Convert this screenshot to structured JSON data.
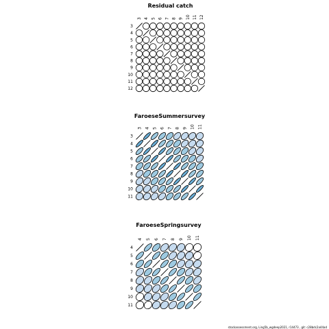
{
  "footer_text": "stockassessment.org, Ling5b_wgdeep2021, r14473 , git: c28bdc2a44ad",
  "colors": {
    "stroke": "#000000",
    "fill_low": "#c6dbef",
    "fill_mid": "#6baed6",
    "fill_high": "#2171b5"
  },
  "chart_data": [
    {
      "type": "heatmap",
      "title": "Residual catch",
      "ages": [
        "3",
        "4",
        "5",
        "6",
        "7",
        "8",
        "9",
        "10",
        "11",
        "12"
      ],
      "correlation": [
        [
          1.0,
          0.0,
          0.0,
          0.0,
          0.0,
          0.0,
          0.0,
          0.0,
          0.0,
          0.0
        ],
        [
          0.0,
          1.0,
          0.0,
          0.0,
          0.0,
          0.0,
          0.0,
          0.0,
          0.0,
          0.0
        ],
        [
          0.0,
          0.0,
          1.0,
          0.0,
          0.0,
          0.0,
          0.0,
          0.0,
          0.0,
          0.0
        ],
        [
          0.0,
          0.0,
          0.0,
          1.0,
          0.0,
          0.0,
          0.0,
          0.0,
          0.0,
          0.0
        ],
        [
          0.0,
          0.0,
          0.0,
          0.0,
          1.0,
          0.0,
          0.0,
          0.0,
          0.0,
          0.0
        ],
        [
          0.0,
          0.0,
          0.0,
          0.0,
          0.0,
          1.0,
          0.0,
          0.0,
          0.0,
          0.0
        ],
        [
          0.0,
          0.0,
          0.0,
          0.0,
          0.0,
          0.0,
          1.0,
          0.0,
          0.0,
          0.0
        ],
        [
          0.0,
          0.0,
          0.0,
          0.0,
          0.0,
          0.0,
          0.0,
          1.0,
          0.0,
          0.0
        ],
        [
          0.0,
          0.0,
          0.0,
          0.0,
          0.0,
          0.0,
          0.0,
          0.0,
          1.0,
          0.0
        ],
        [
          0.0,
          0.0,
          0.0,
          0.0,
          0.0,
          0.0,
          0.0,
          0.0,
          0.0,
          1.0
        ]
      ]
    },
    {
      "type": "heatmap",
      "title": "FaroeseSummersurvey",
      "ages": [
        "3",
        "4",
        "5",
        "6",
        "7",
        "8",
        "9",
        "10",
        "11"
      ],
      "correlation": [
        [
          1.0,
          0.85,
          0.72,
          0.6,
          0.49,
          0.4,
          0.32,
          0.24,
          0.16
        ],
        [
          0.85,
          1.0,
          0.85,
          0.72,
          0.6,
          0.49,
          0.4,
          0.32,
          0.24
        ],
        [
          0.72,
          0.85,
          1.0,
          0.85,
          0.72,
          0.6,
          0.49,
          0.4,
          0.32
        ],
        [
          0.6,
          0.72,
          0.85,
          1.0,
          0.85,
          0.72,
          0.6,
          0.49,
          0.4
        ],
        [
          0.49,
          0.6,
          0.72,
          0.85,
          1.0,
          0.85,
          0.72,
          0.6,
          0.49
        ],
        [
          0.4,
          0.49,
          0.6,
          0.72,
          0.85,
          1.0,
          0.85,
          0.72,
          0.6
        ],
        [
          0.32,
          0.4,
          0.49,
          0.6,
          0.72,
          0.85,
          1.0,
          0.85,
          0.72
        ],
        [
          0.24,
          0.32,
          0.4,
          0.49,
          0.6,
          0.72,
          0.85,
          1.0,
          0.85
        ],
        [
          0.16,
          0.24,
          0.32,
          0.4,
          0.49,
          0.6,
          0.72,
          0.85,
          1.0
        ]
      ]
    },
    {
      "type": "heatmap",
      "title": "FaroeseSpringsurvey",
      "ages": [
        "4",
        "5",
        "6",
        "7",
        "8",
        "9",
        "10",
        "11"
      ],
      "correlation": [
        [
          1.0,
          0.72,
          0.52,
          0.37,
          0.27,
          0.19,
          0.14,
          0.1
        ],
        [
          0.72,
          1.0,
          0.72,
          0.52,
          0.37,
          0.27,
          0.19,
          0.14
        ],
        [
          0.52,
          0.72,
          1.0,
          0.72,
          0.52,
          0.37,
          0.27,
          0.19
        ],
        [
          0.37,
          0.52,
          0.72,
          1.0,
          0.72,
          0.52,
          0.37,
          0.27
        ],
        [
          0.27,
          0.37,
          0.52,
          0.72,
          1.0,
          0.72,
          0.52,
          0.37
        ],
        [
          0.19,
          0.27,
          0.37,
          0.52,
          0.72,
          1.0,
          0.72,
          0.52
        ],
        [
          0.14,
          0.19,
          0.27,
          0.37,
          0.52,
          0.72,
          1.0,
          0.72
        ],
        [
          0.1,
          0.14,
          0.19,
          0.27,
          0.37,
          0.52,
          0.72,
          1.0
        ]
      ]
    }
  ]
}
